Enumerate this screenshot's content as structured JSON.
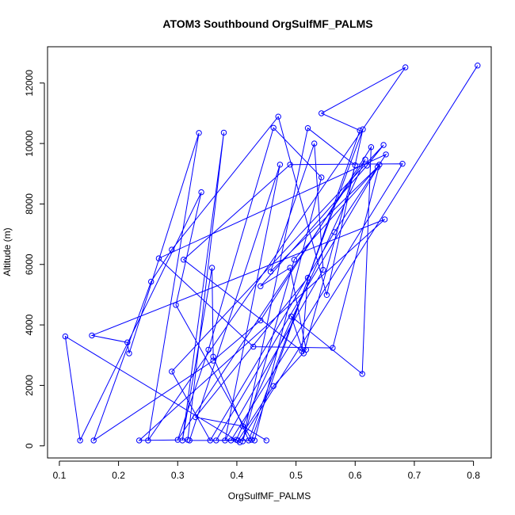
{
  "chart_data": {
    "type": "line",
    "title": "ATOM3 Southbound OrgSulfMF_PALMS",
    "xlabel": "OrgSulfMF_PALMS",
    "ylabel": "Altitude (m)",
    "xlim": [
      0.08,
      0.83
    ],
    "ylim": [
      -400,
      13200
    ],
    "xticks": [
      0.1,
      0.2,
      0.3,
      0.4,
      0.5,
      0.6,
      0.7,
      0.8
    ],
    "xtick_labels": [
      "0.1",
      "0.2",
      "0.3",
      "0.4",
      "0.5",
      "0.6",
      "0.7",
      "0.8"
    ],
    "yticks": [
      0,
      2000,
      4000,
      6000,
      8000,
      10000,
      12000
    ],
    "ytick_labels": [
      "0",
      "2000",
      "4000",
      "6000",
      "8000",
      "10000",
      "12000"
    ],
    "grid": false,
    "marker": "open-circle",
    "color": "#0000ff",
    "series": [
      {
        "x": [
          0.807,
          0.405,
          0.11,
          0.135,
          0.34,
          0.297,
          0.425,
          0.608,
          0.543,
          0.685,
          0.25,
          0.336,
          0.218,
          0.215,
          0.155,
          0.65,
          0.235,
          0.317,
          0.378,
          0.308,
          0.358,
          0.36,
          0.42,
          0.613,
          0.552,
          0.47,
          0.29,
          0.255,
          0.158,
          0.36,
          0.44,
          0.627,
          0.612,
          0.492,
          0.513,
          0.6,
          0.52,
          0.41,
          0.497,
          0.638,
          0.457,
          0.531,
          0.546,
          0.38,
          0.473,
          0.32,
          0.402,
          0.462,
          0.517,
          0.49,
          0.44,
          0.62,
          0.648,
          0.29,
          0.355,
          0.565,
          0.652,
          0.268,
          0.428,
          0.562,
          0.641,
          0.365,
          0.399,
          0.617,
          0.3,
          0.352,
          0.462,
          0.543,
          0.43,
          0.39,
          0.68,
          0.49,
          0.31,
          0.51,
          0.52,
          0.33,
          0.41,
          0.45
        ],
        "y": [
          12580,
          120,
          3620,
          180,
          8390,
          4660,
          200,
          10430,
          11000,
          12520,
          180,
          10350,
          3060,
          3420,
          3650,
          7490,
          180,
          200,
          10360,
          180,
          5890,
          2950,
          180,
          10470,
          4990,
          10890,
          6490,
          5430,
          180,
          2820,
          4150,
          9880,
          2380,
          4280,
          3060,
          9280,
          10510,
          150,
          6160,
          9220,
          5760,
          10000,
          5820,
          180,
          9300,
          180,
          180,
          1980,
          3180,
          5890,
          5280,
          9270,
          9950,
          2460,
          180,
          7070,
          9640,
          6200,
          3280,
          3240,
          9300,
          180,
          200,
          9470,
          200,
          3180,
          10520,
          8880,
          180,
          180,
          9330,
          9300,
          6160,
          3130,
          5560,
          950,
          650,
          180
        ]
      }
    ]
  }
}
